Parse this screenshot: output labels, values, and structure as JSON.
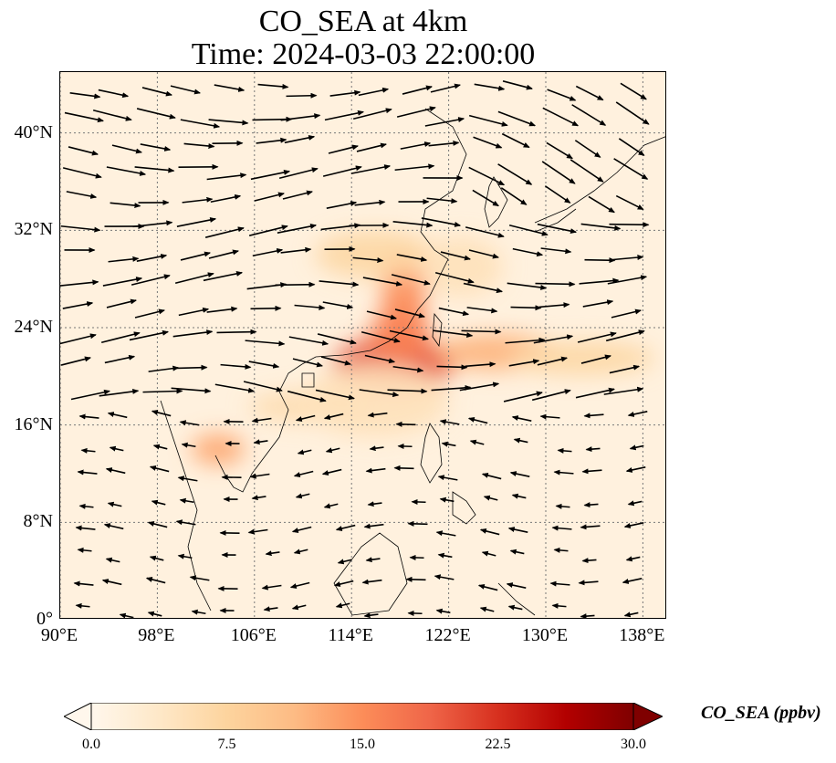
{
  "title": {
    "line1": "CO_SEA at 4km",
    "line2": "Time: 2024-03-03 22:00:00"
  },
  "map": {
    "variable": "CO_SEA",
    "level": "4km",
    "extent": {
      "lon_min": 90,
      "lon_max": 140,
      "lat_min": 0,
      "lat_max": 45
    },
    "lon_ticks": [
      {
        "value": 90,
        "label": "90°E"
      },
      {
        "value": 98,
        "label": "98°E"
      },
      {
        "value": 106,
        "label": "106°E"
      },
      {
        "value": 114,
        "label": "114°E"
      },
      {
        "value": 122,
        "label": "122°E"
      },
      {
        "value": 130,
        "label": "130°E"
      },
      {
        "value": 138,
        "label": "138°E"
      }
    ],
    "lat_ticks": [
      {
        "value": 0,
        "label": "0°"
      },
      {
        "value": 8,
        "label": "8°N"
      },
      {
        "value": 16,
        "label": "16°N"
      },
      {
        "value": 24,
        "label": "24°N"
      },
      {
        "value": 32,
        "label": "32°N"
      },
      {
        "value": 40,
        "label": "40°N"
      }
    ],
    "gridlines": true,
    "background_value_ppbv": 1.5,
    "plumes": [
      {
        "lon": 117.5,
        "lat": 21.0,
        "rlon": 5.0,
        "rlat": 2.2,
        "value": 20
      },
      {
        "lon": 118.3,
        "lat": 26.5,
        "rlon": 1.8,
        "rlat": 4.0,
        "value": 15
      },
      {
        "lon": 126.0,
        "lat": 22.0,
        "rlon": 5.0,
        "rlat": 1.5,
        "value": 12
      },
      {
        "lon": 133.0,
        "lat": 21.5,
        "rlon": 6.0,
        "rlat": 1.4,
        "value": 7
      },
      {
        "lon": 116.0,
        "lat": 30.0,
        "rlon": 5.0,
        "rlat": 2.0,
        "value": 7
      },
      {
        "lon": 103.0,
        "lat": 14.0,
        "rlon": 2.2,
        "rlat": 1.3,
        "value": 13
      },
      {
        "lon": 110.5,
        "lat": 17.5,
        "rlon": 5.0,
        "rlat": 1.3,
        "value": 6
      },
      {
        "lon": 123.0,
        "lat": 29.0,
        "rlon": 3.5,
        "rlat": 2.5,
        "value": 5
      },
      {
        "lon": 116.0,
        "lat": 18.0,
        "rlon": 6.0,
        "rlat": 3.0,
        "value": 5
      },
      {
        "lon": 118.0,
        "lat": 23.5,
        "rlon": 2.5,
        "rlat": 2.0,
        "value": 16
      }
    ]
  },
  "wind": {
    "description": "westerly flow north of ~18N, easterly trade winds south",
    "vectors_north_u": 1.0,
    "vectors_south_u": -1.0
  },
  "colorbar": {
    "label": "CO_SEA (ppbv)",
    "vmin": 0.0,
    "vmax": 30.0,
    "ticks": [
      {
        "value": 0.0,
        "label": "0.0"
      },
      {
        "value": 7.5,
        "label": "7.5"
      },
      {
        "value": 15.0,
        "label": "15.0"
      },
      {
        "value": 22.5,
        "label": "22.5"
      },
      {
        "value": 30.0,
        "label": "30.0"
      }
    ],
    "extend": "both",
    "colormap": [
      "#fff7ec",
      "#fee8c8",
      "#fdd49e",
      "#fdbb84",
      "#fc8d59",
      "#ef6548",
      "#d7301f",
      "#b30000",
      "#7f0000"
    ]
  }
}
